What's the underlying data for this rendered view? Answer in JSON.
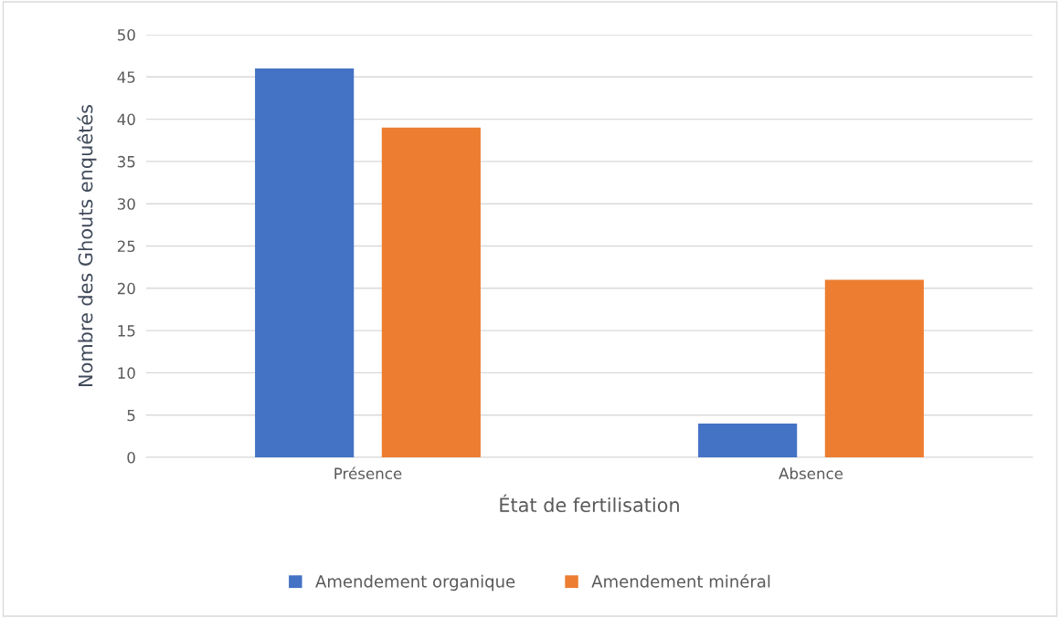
{
  "chart_data": {
    "type": "bar",
    "xlabel": "État de fertilisation",
    "ylabel": "Nombre des Ghouts enquêtés",
    "categories": [
      "Présence",
      "Absence"
    ],
    "series": [
      {
        "name": "Amendement organique",
        "color": "#4472c4",
        "values": [
          46,
          4
        ]
      },
      {
        "name": "Amendement minéral",
        "color": "#ed7d31",
        "values": [
          39,
          21
        ]
      }
    ],
    "ylim": [
      0,
      50
    ],
    "yticks": [
      0,
      5,
      10,
      15,
      20,
      25,
      30,
      35,
      40,
      45,
      50
    ],
    "grid": "y",
    "legend": "bottom"
  }
}
